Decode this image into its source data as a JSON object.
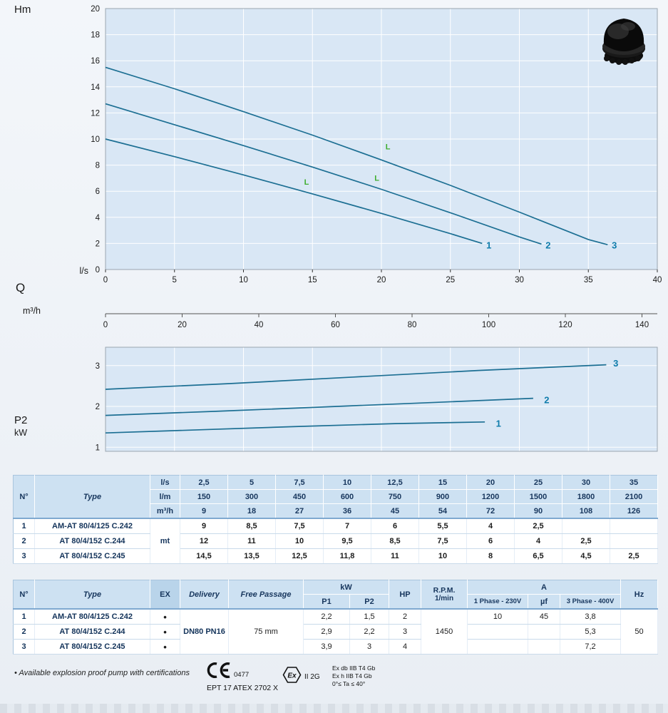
{
  "chart_labels": {
    "hm": "Hm",
    "ls": "l/s",
    "q": "Q",
    "m3h": "m³/h",
    "p2": "P2",
    "kw": "kW"
  },
  "chart_data": [
    {
      "type": "line",
      "title": "Pump head curves",
      "xlabel": "Q (l/s)",
      "ylabel": "Hm",
      "xlim": [
        0,
        40
      ],
      "ylim": [
        0,
        20
      ],
      "x_ticks": [
        0,
        5,
        10,
        15,
        20,
        25,
        30,
        35,
        40
      ],
      "y_ticks": [
        0,
        2,
        4,
        6,
        8,
        10,
        12,
        14,
        16,
        18,
        20
      ],
      "grid": true,
      "secondary_x": {
        "label": "m³/h",
        "factor": 3.6,
        "ticks": [
          0,
          20,
          40,
          60,
          80,
          100,
          120,
          140
        ]
      },
      "series": [
        {
          "name": "1",
          "x": [
            0,
            5,
            10,
            15,
            20,
            25,
            27.3
          ],
          "y": [
            10,
            8.65,
            7.25,
            5.8,
            4.3,
            2.75,
            2.0
          ],
          "label_at": [
            27.6,
            1.6
          ]
        },
        {
          "name": "2",
          "x": [
            0,
            5,
            10,
            15,
            20,
            25,
            30,
            31.6
          ],
          "y": [
            12.7,
            11.1,
            9.5,
            7.85,
            6.15,
            4.35,
            2.5,
            1.95
          ],
          "label_at": [
            31.9,
            1.6
          ]
        },
        {
          "name": "3",
          "x": [
            0,
            5,
            10,
            15,
            20,
            25,
            30,
            35,
            36.4
          ],
          "y": [
            15.5,
            13.85,
            12.1,
            10.3,
            8.4,
            6.45,
            4.4,
            2.3,
            1.9
          ],
          "label_at": [
            36.7,
            1.6
          ]
        }
      ],
      "marker_glyph": "L",
      "duty_markers": [
        {
          "x": 14.4,
          "y": 6.5
        },
        {
          "x": 19.5,
          "y": 6.8
        },
        {
          "x": 20.3,
          "y": 9.2
        }
      ]
    },
    {
      "type": "line",
      "title": "Shaft power P2 curves",
      "xlabel": "Q (l/s)",
      "ylabel": "P2 kW",
      "xlim": [
        0,
        40
      ],
      "ylim": [
        0.9,
        3.45
      ],
      "y_ticks": [
        1,
        2,
        3
      ],
      "grid": true,
      "series": [
        {
          "name": "1",
          "x": [
            0,
            7,
            14,
            21,
            27.5
          ],
          "y": [
            1.35,
            1.43,
            1.51,
            1.58,
            1.62
          ],
          "label_at": [
            28.3,
            1.5
          ]
        },
        {
          "name": "2",
          "x": [
            0,
            8,
            16,
            24,
            31
          ],
          "y": [
            1.78,
            1.88,
            1.99,
            2.1,
            2.2
          ],
          "label_at": [
            31.8,
            2.08
          ]
        },
        {
          "name": "3",
          "x": [
            0,
            9,
            18,
            27,
            36.3
          ],
          "y": [
            2.42,
            2.56,
            2.72,
            2.88,
            3.02
          ],
          "label_at": [
            36.8,
            2.98
          ]
        }
      ]
    }
  ],
  "table1": {
    "headers": {
      "n": "N°",
      "type": "Type"
    },
    "unit_rows": [
      {
        "unit": "l/s",
        "values": [
          "2,5",
          "5",
          "7,5",
          "10",
          "12,5",
          "15",
          "20",
          "25",
          "30",
          "35"
        ]
      },
      {
        "unit": "l/m",
        "values": [
          "150",
          "300",
          "450",
          "600",
          "750",
          "900",
          "1200",
          "1500",
          "1800",
          "2100"
        ]
      },
      {
        "unit": "m³/h",
        "values": [
          "9",
          "18",
          "27",
          "36",
          "45",
          "54",
          "72",
          "90",
          "108",
          "126"
        ]
      }
    ],
    "body_unit": "mt",
    "rows": [
      {
        "n": "1",
        "type": "AM-AT 80/4/125 C.242",
        "values": [
          "9",
          "8,5",
          "7,5",
          "7",
          "6",
          "5,5",
          "4",
          "2,5",
          "",
          ""
        ]
      },
      {
        "n": "2",
        "type": "AT 80/4/152 C.244",
        "values": [
          "12",
          "11",
          "10",
          "9,5",
          "8,5",
          "7,5",
          "6",
          "4",
          "2,5",
          ""
        ]
      },
      {
        "n": "3",
        "type": "AT 80/4/152 C.245",
        "values": [
          "14,5",
          "13,5",
          "12,5",
          "11,8",
          "11",
          "10",
          "8",
          "6,5",
          "4,5",
          "2,5"
        ]
      }
    ]
  },
  "table2": {
    "headers": {
      "n": "N°",
      "type": "Type",
      "ex": "EX",
      "delivery": "Delivery",
      "free_passage": "Free Passage",
      "kw": "kW",
      "p1": "P1",
      "p2": "P2",
      "hp": "HP",
      "rpm_line1": "R.P.M.",
      "rpm_line2": "1/min",
      "a": "A",
      "phase1": "1 Phase - 230V",
      "uf": "µf",
      "phase3": "3 Phase - 400V",
      "hz": "Hz"
    },
    "shared": {
      "delivery": "DN80 PN16",
      "free_passage": "75 mm",
      "rpm": "1450",
      "hz": "50"
    },
    "rows": [
      {
        "n": "1",
        "type": "AM-AT 80/4/125 C.242",
        "ex": "•",
        "p1": "2,2",
        "p2": "1,5",
        "hp": "2",
        "phase1": "10",
        "uf": "45",
        "phase3": "3,8"
      },
      {
        "n": "2",
        "type": "AT 80/4/152 C.244",
        "ex": "•",
        "p1": "2,9",
        "p2": "2,2",
        "hp": "3",
        "phase1": "",
        "uf": "",
        "phase3": "5,3"
      },
      {
        "n": "3",
        "type": "AT 80/4/152 C.245",
        "ex": "•",
        "p1": "3,9",
        "p2": "3",
        "hp": "4",
        "phase1": "",
        "uf": "",
        "phase3": "7,2"
      }
    ]
  },
  "footer": {
    "note": "• Available explosion proof pump with certifications",
    "ce_number": "0477",
    "atex_cert": "EPT 17 ATEX 2702 X",
    "ex_mark": "Ex",
    "group": "II 2G",
    "cert_lines": [
      "Ex db IIB T4 Gb",
      "Ex h IIB T4 Gb",
      "0°≤ Ta ≤ 40°"
    ]
  }
}
